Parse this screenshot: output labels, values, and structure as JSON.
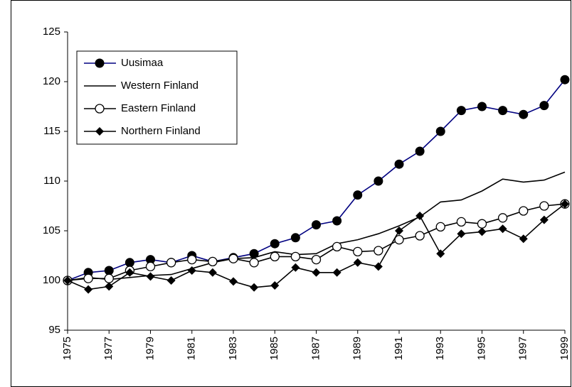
{
  "chart_data": {
    "type": "line",
    "x": [
      1975,
      1976,
      1977,
      1978,
      1979,
      1980,
      1981,
      1982,
      1983,
      1984,
      1985,
      1986,
      1987,
      1988,
      1989,
      1990,
      1991,
      1992,
      1993,
      1994,
      1995,
      1996,
      1997,
      1998,
      1999
    ],
    "xlim": [
      1975,
      1999
    ],
    "xticks": [
      1975,
      1977,
      1979,
      1981,
      1983,
      1985,
      1987,
      1989,
      1991,
      1993,
      1995,
      1997,
      1999
    ],
    "ylim": [
      95,
      125
    ],
    "yticks": [
      95,
      100,
      105,
      110,
      115,
      120,
      125
    ],
    "legend": "top-left",
    "series": [
      {
        "name": "Uusimaa",
        "color": "#000080",
        "marker": "circle-filled",
        "values": [
          100,
          100.8,
          101,
          101.8,
          102.1,
          101.8,
          102.5,
          101.9,
          102.3,
          102.7,
          103.7,
          104.3,
          105.6,
          106,
          108.6,
          110,
          111.7,
          113,
          115,
          117.1,
          117.5,
          117.1,
          116.7,
          117.6,
          120.2
        ]
      },
      {
        "name": "Western Finland",
        "color": "#000000",
        "marker": "none",
        "values": [
          100,
          100.3,
          100.1,
          100.3,
          100.5,
          100.6,
          101.2,
          101.8,
          102.2,
          102.3,
          102.9,
          102.6,
          102.7,
          103.7,
          104.1,
          104.7,
          105.5,
          106.4,
          107.9,
          108.1,
          109,
          110.2,
          109.9,
          110.1,
          110.9
        ]
      },
      {
        "name": "Eastern Finland",
        "color": "#000000",
        "marker": "circle-open",
        "values": [
          100,
          100.2,
          100.2,
          101,
          101.4,
          101.8,
          102.1,
          101.9,
          102.2,
          101.8,
          102.4,
          102.4,
          102.1,
          103.4,
          102.9,
          103,
          104.1,
          104.5,
          105.4,
          105.9,
          105.7,
          106.3,
          107,
          107.5,
          107.7
        ]
      },
      {
        "name": "Northern Finland",
        "color": "#000000",
        "marker": "diamond",
        "values": [
          100,
          99.1,
          99.4,
          100.8,
          100.4,
          100,
          101,
          100.8,
          99.9,
          99.3,
          99.5,
          101.3,
          100.8,
          100.8,
          101.8,
          101.4,
          105,
          106.5,
          102.7,
          104.7,
          104.9,
          105.2,
          104.2,
          106.1,
          107.7
        ]
      }
    ]
  }
}
